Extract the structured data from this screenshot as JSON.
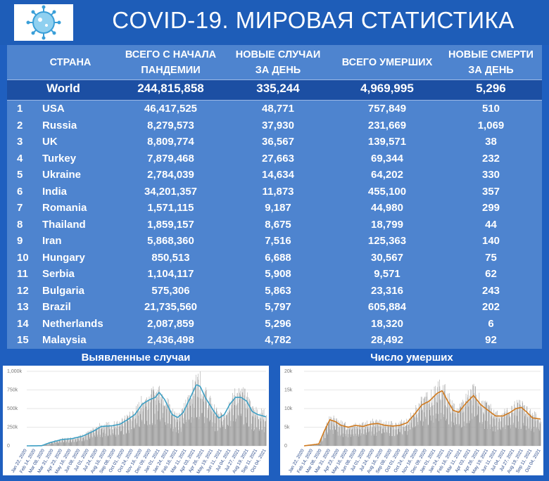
{
  "title": "COVID-19. МИРОВАЯ СТАТИСТИКА",
  "logo": "virus-icon",
  "table": {
    "headers": {
      "country": "СТРАНА",
      "total": [
        "ВСЕГО С НАЧАЛА",
        "ПАНДЕМИИ"
      ],
      "new_cases": [
        "НОВЫЕ СЛУЧАИ",
        "ЗА ДЕНЬ"
      ],
      "deaths": "ВСЕГО УМЕРШИХ",
      "new_deaths": [
        "НОВЫЕ СМЕРТИ",
        "ЗА ДЕНЬ"
      ]
    },
    "world": {
      "name": "World",
      "total": "244,815,858",
      "new_cases": "335,244",
      "deaths": "4,969,995",
      "new_deaths": "5,296"
    },
    "rows": [
      {
        "rank": "1",
        "country": "USA",
        "total": "46,417,525",
        "new_cases": "48,771",
        "deaths": "757,849",
        "new_deaths": "510"
      },
      {
        "rank": "2",
        "country": "Russia",
        "total": "8,279,573",
        "new_cases": "37,930",
        "deaths": "231,669",
        "new_deaths": "1,069"
      },
      {
        "rank": "3",
        "country": "UK",
        "total": "8,809,774",
        "new_cases": "36,567",
        "deaths": "139,571",
        "new_deaths": "38"
      },
      {
        "rank": "4",
        "country": "Turkey",
        "total": "7,879,468",
        "new_cases": "27,663",
        "deaths": "69,344",
        "new_deaths": "232"
      },
      {
        "rank": "5",
        "country": "Ukraine",
        "total": "2,784,039",
        "new_cases": "14,634",
        "deaths": "64,202",
        "new_deaths": "330"
      },
      {
        "rank": "6",
        "country": "India",
        "total": "34,201,357",
        "new_cases": "11,873",
        "deaths": "455,100",
        "new_deaths": "357"
      },
      {
        "rank": "7",
        "country": "Romania",
        "total": "1,571,115",
        "new_cases": "9,187",
        "deaths": "44,980",
        "new_deaths": "299"
      },
      {
        "rank": "8",
        "country": "Thailand",
        "total": "1,859,157",
        "new_cases": "8,675",
        "deaths": "18,799",
        "new_deaths": "44"
      },
      {
        "rank": "9",
        "country": "Iran",
        "total": "5,868,360",
        "new_cases": "7,516",
        "deaths": "125,363",
        "new_deaths": "140"
      },
      {
        "rank": "10",
        "country": "Hungary",
        "total": "850,513",
        "new_cases": "6,688",
        "deaths": "30,567",
        "new_deaths": "75"
      },
      {
        "rank": "11",
        "country": "Serbia",
        "total": "1,104,117",
        "new_cases": "5,908",
        "deaths": "9,571",
        "new_deaths": "62"
      },
      {
        "rank": "12",
        "country": "Bulgaria",
        "total": "575,306",
        "new_cases": "5,863",
        "deaths": "23,316",
        "new_deaths": "243"
      },
      {
        "rank": "13",
        "country": "Brazil",
        "total": "21,735,560",
        "new_cases": "5,797",
        "deaths": "605,884",
        "new_deaths": "202"
      },
      {
        "rank": "14",
        "country": "Netherlands",
        "total": "2,087,859",
        "new_cases": "5,296",
        "deaths": "18,320",
        "new_deaths": "6"
      },
      {
        "rank": "15",
        "country": "Malaysia",
        "total": "2,436,498",
        "new_cases": "4,782",
        "deaths": "28,492",
        "new_deaths": "92"
      }
    ]
  },
  "chart_data": [
    {
      "type": "bar",
      "title": "Выявленные случаи",
      "xlabel": "",
      "ylabel": "",
      "ylim": [
        0,
        1000000
      ],
      "yticks": [
        "0",
        "250k",
        "500k",
        "750k",
        "1,000k"
      ],
      "xticks": [
        "Jan 22, 2020",
        "Feb 14, 2020",
        "Mar 08, 2020",
        "Mar 31, 2020",
        "Apr 23, 2020",
        "May 16, 2020",
        "Jun 08, 2020",
        "Jul 01, 2020",
        "Jul 24, 2020",
        "Aug 16, 2020",
        "Sep 08, 2020",
        "Oct 01, 2020",
        "Oct 24, 2020",
        "Nov 16, 2020",
        "Dec 09, 2020",
        "Jan 01, 2021",
        "Jan 24, 2021",
        "Feb 16, 2021",
        "Mar 11, 2021",
        "Apr 03, 2021",
        "Apr 26, 2021",
        "May 19, 2021",
        "Jun 11, 2021",
        "Jul 04, 2021",
        "Jul 27, 2021",
        "Aug 19, 2021",
        "Sep 11, 2021",
        "Oct 04, 2021"
      ],
      "bar_color": "#a0a0a0",
      "line_color": "#3c9fc4",
      "x_start": "2020-01-22",
      "x_end": "2021-10-25",
      "trend": [
        [
          0,
          0
        ],
        [
          40,
          2000
        ],
        [
          60,
          40000
        ],
        [
          75,
          60000
        ],
        [
          95,
          85000
        ],
        [
          120,
          95000
        ],
        [
          150,
          130000
        ],
        [
          180,
          200000
        ],
        [
          200,
          260000
        ],
        [
          230,
          270000
        ],
        [
          250,
          290000
        ],
        [
          270,
          350000
        ],
        [
          290,
          420000
        ],
        [
          310,
          560000
        ],
        [
          330,
          620000
        ],
        [
          345,
          650000
        ],
        [
          355,
          720000
        ],
        [
          370,
          620000
        ],
        [
          390,
          420000
        ],
        [
          405,
          380000
        ],
        [
          420,
          450000
        ],
        [
          440,
          660000
        ],
        [
          455,
          820000
        ],
        [
          465,
          800000
        ],
        [
          480,
          640000
        ],
        [
          500,
          480000
        ],
        [
          515,
          370000
        ],
        [
          530,
          420000
        ],
        [
          545,
          560000
        ],
        [
          560,
          650000
        ],
        [
          575,
          650000
        ],
        [
          590,
          600000
        ],
        [
          605,
          460000
        ],
        [
          620,
          420000
        ],
        [
          642,
          390000
        ]
      ]
    },
    {
      "type": "bar",
      "title": "Число умерших",
      "xlabel": "",
      "ylabel": "",
      "ylim": [
        0,
        20000
      ],
      "yticks": [
        "0",
        "5k",
        "10k",
        "15k",
        "20k"
      ],
      "xticks": [
        "Jan 22, 2020",
        "Feb 14, 2020",
        "Mar 08, 2020",
        "Mar 31, 2020",
        "Apr 23, 2020",
        "May 16, 2020",
        "Jun 08, 2020",
        "Jul 01, 2020",
        "Jul 24, 2020",
        "Aug 16, 2020",
        "Sep 08, 2020",
        "Oct 01, 2020",
        "Oct 24, 2020",
        "Nov 16, 2020",
        "Dec 09, 2020",
        "Jan 01, 2021",
        "Jan 24, 2021",
        "Feb 16, 2021",
        "Mar 11, 2021",
        "Apr 03, 2021",
        "Apr 26, 2021",
        "May 19, 2021",
        "Jun 11, 2021",
        "Jul 04, 2021",
        "Jul 27, 2021",
        "Aug 19, 2021",
        "Sep 11, 2021",
        "Oct 04, 2021"
      ],
      "bar_color": "#a0a0a0",
      "line_color": "#d07a1e",
      "x_start": "2020-01-22",
      "x_end": "2021-10-25",
      "trend": [
        [
          0,
          0
        ],
        [
          40,
          500
        ],
        [
          55,
          4000
        ],
        [
          70,
          7000
        ],
        [
          85,
          6500
        ],
        [
          100,
          5500
        ],
        [
          120,
          5000
        ],
        [
          140,
          5500
        ],
        [
          160,
          5200
        ],
        [
          180,
          5800
        ],
        [
          200,
          6000
        ],
        [
          220,
          5500
        ],
        [
          240,
          5300
        ],
        [
          260,
          5500
        ],
        [
          280,
          6200
        ],
        [
          300,
          8500
        ],
        [
          320,
          11000
        ],
        [
          340,
          12000
        ],
        [
          360,
          14000
        ],
        [
          375,
          14800
        ],
        [
          390,
          12000
        ],
        [
          405,
          9500
        ],
        [
          420,
          9000
        ],
        [
          440,
          11500
        ],
        [
          460,
          13500
        ],
        [
          480,
          11000
        ],
        [
          500,
          9500
        ],
        [
          520,
          8000
        ],
        [
          540,
          8000
        ],
        [
          560,
          9000
        ],
        [
          575,
          10000
        ],
        [
          590,
          10300
        ],
        [
          605,
          9000
        ],
        [
          620,
          7500
        ],
        [
          642,
          7200
        ]
      ]
    }
  ]
}
